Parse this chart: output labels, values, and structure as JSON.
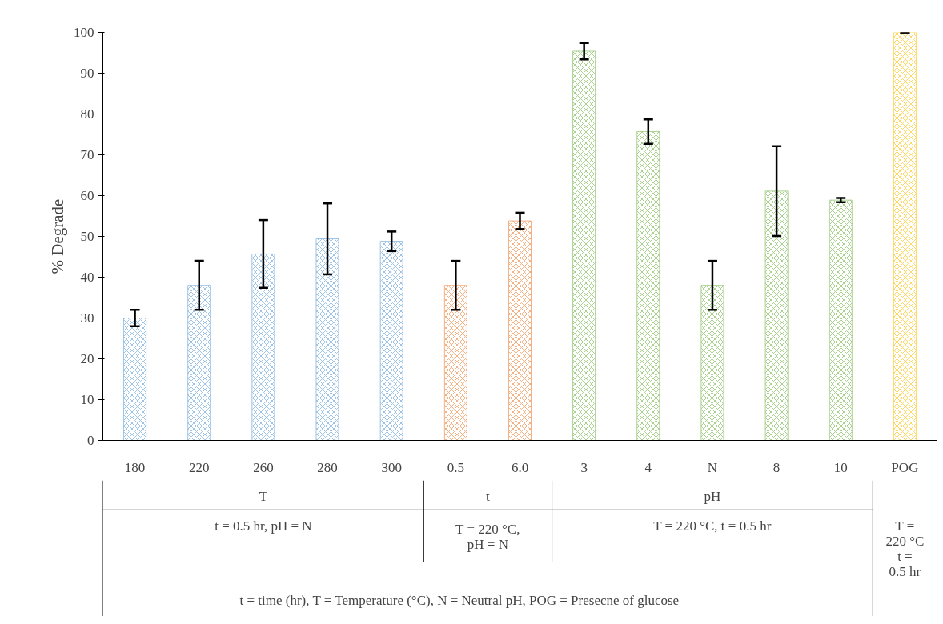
{
  "chart_data": {
    "type": "bar",
    "ylabel": "% Degrade",
    "categories": [
      "180",
      "220",
      "260",
      "280",
      "300",
      "0.5",
      "6.0",
      "3",
      "4",
      "N",
      "8",
      "10",
      "POG"
    ],
    "values": [
      30,
      38,
      45.7,
      49.4,
      48.8,
      38,
      53.8,
      95.4,
      75.7,
      38,
      61.1,
      58.9,
      100
    ],
    "errors": [
      2,
      6,
      8.3,
      8.7,
      2.4,
      6,
      2,
      2,
      3,
      6,
      11,
      0.5,
      0
    ],
    "colors": [
      "#9dc3e6",
      "#9dc3e6",
      "#9dc3e6",
      "#9dc3e6",
      "#9dc3e6",
      "#f4b183",
      "#f4b183",
      "#a9d18e",
      "#a9d18e",
      "#a9d18e",
      "#a9d18e",
      "#a9d18e",
      "#ffd966"
    ],
    "ylim": [
      0,
      100
    ],
    "yticks": [
      0,
      10,
      20,
      30,
      40,
      50,
      60,
      70,
      80,
      90,
      100
    ],
    "grid": false,
    "annotations": [
      "T",
      "t",
      "pH",
      "T = 220 °C t = 0.5 hr",
      "t = 0.5 hr, pH = N",
      "T = 220 °C, pH = N",
      "T = 220 °C, t = 0.5 hr",
      "t = time (hr),    T = Temperature (°C),    N = Neutral pH,    POG = Presecne of glucose"
    ]
  }
}
